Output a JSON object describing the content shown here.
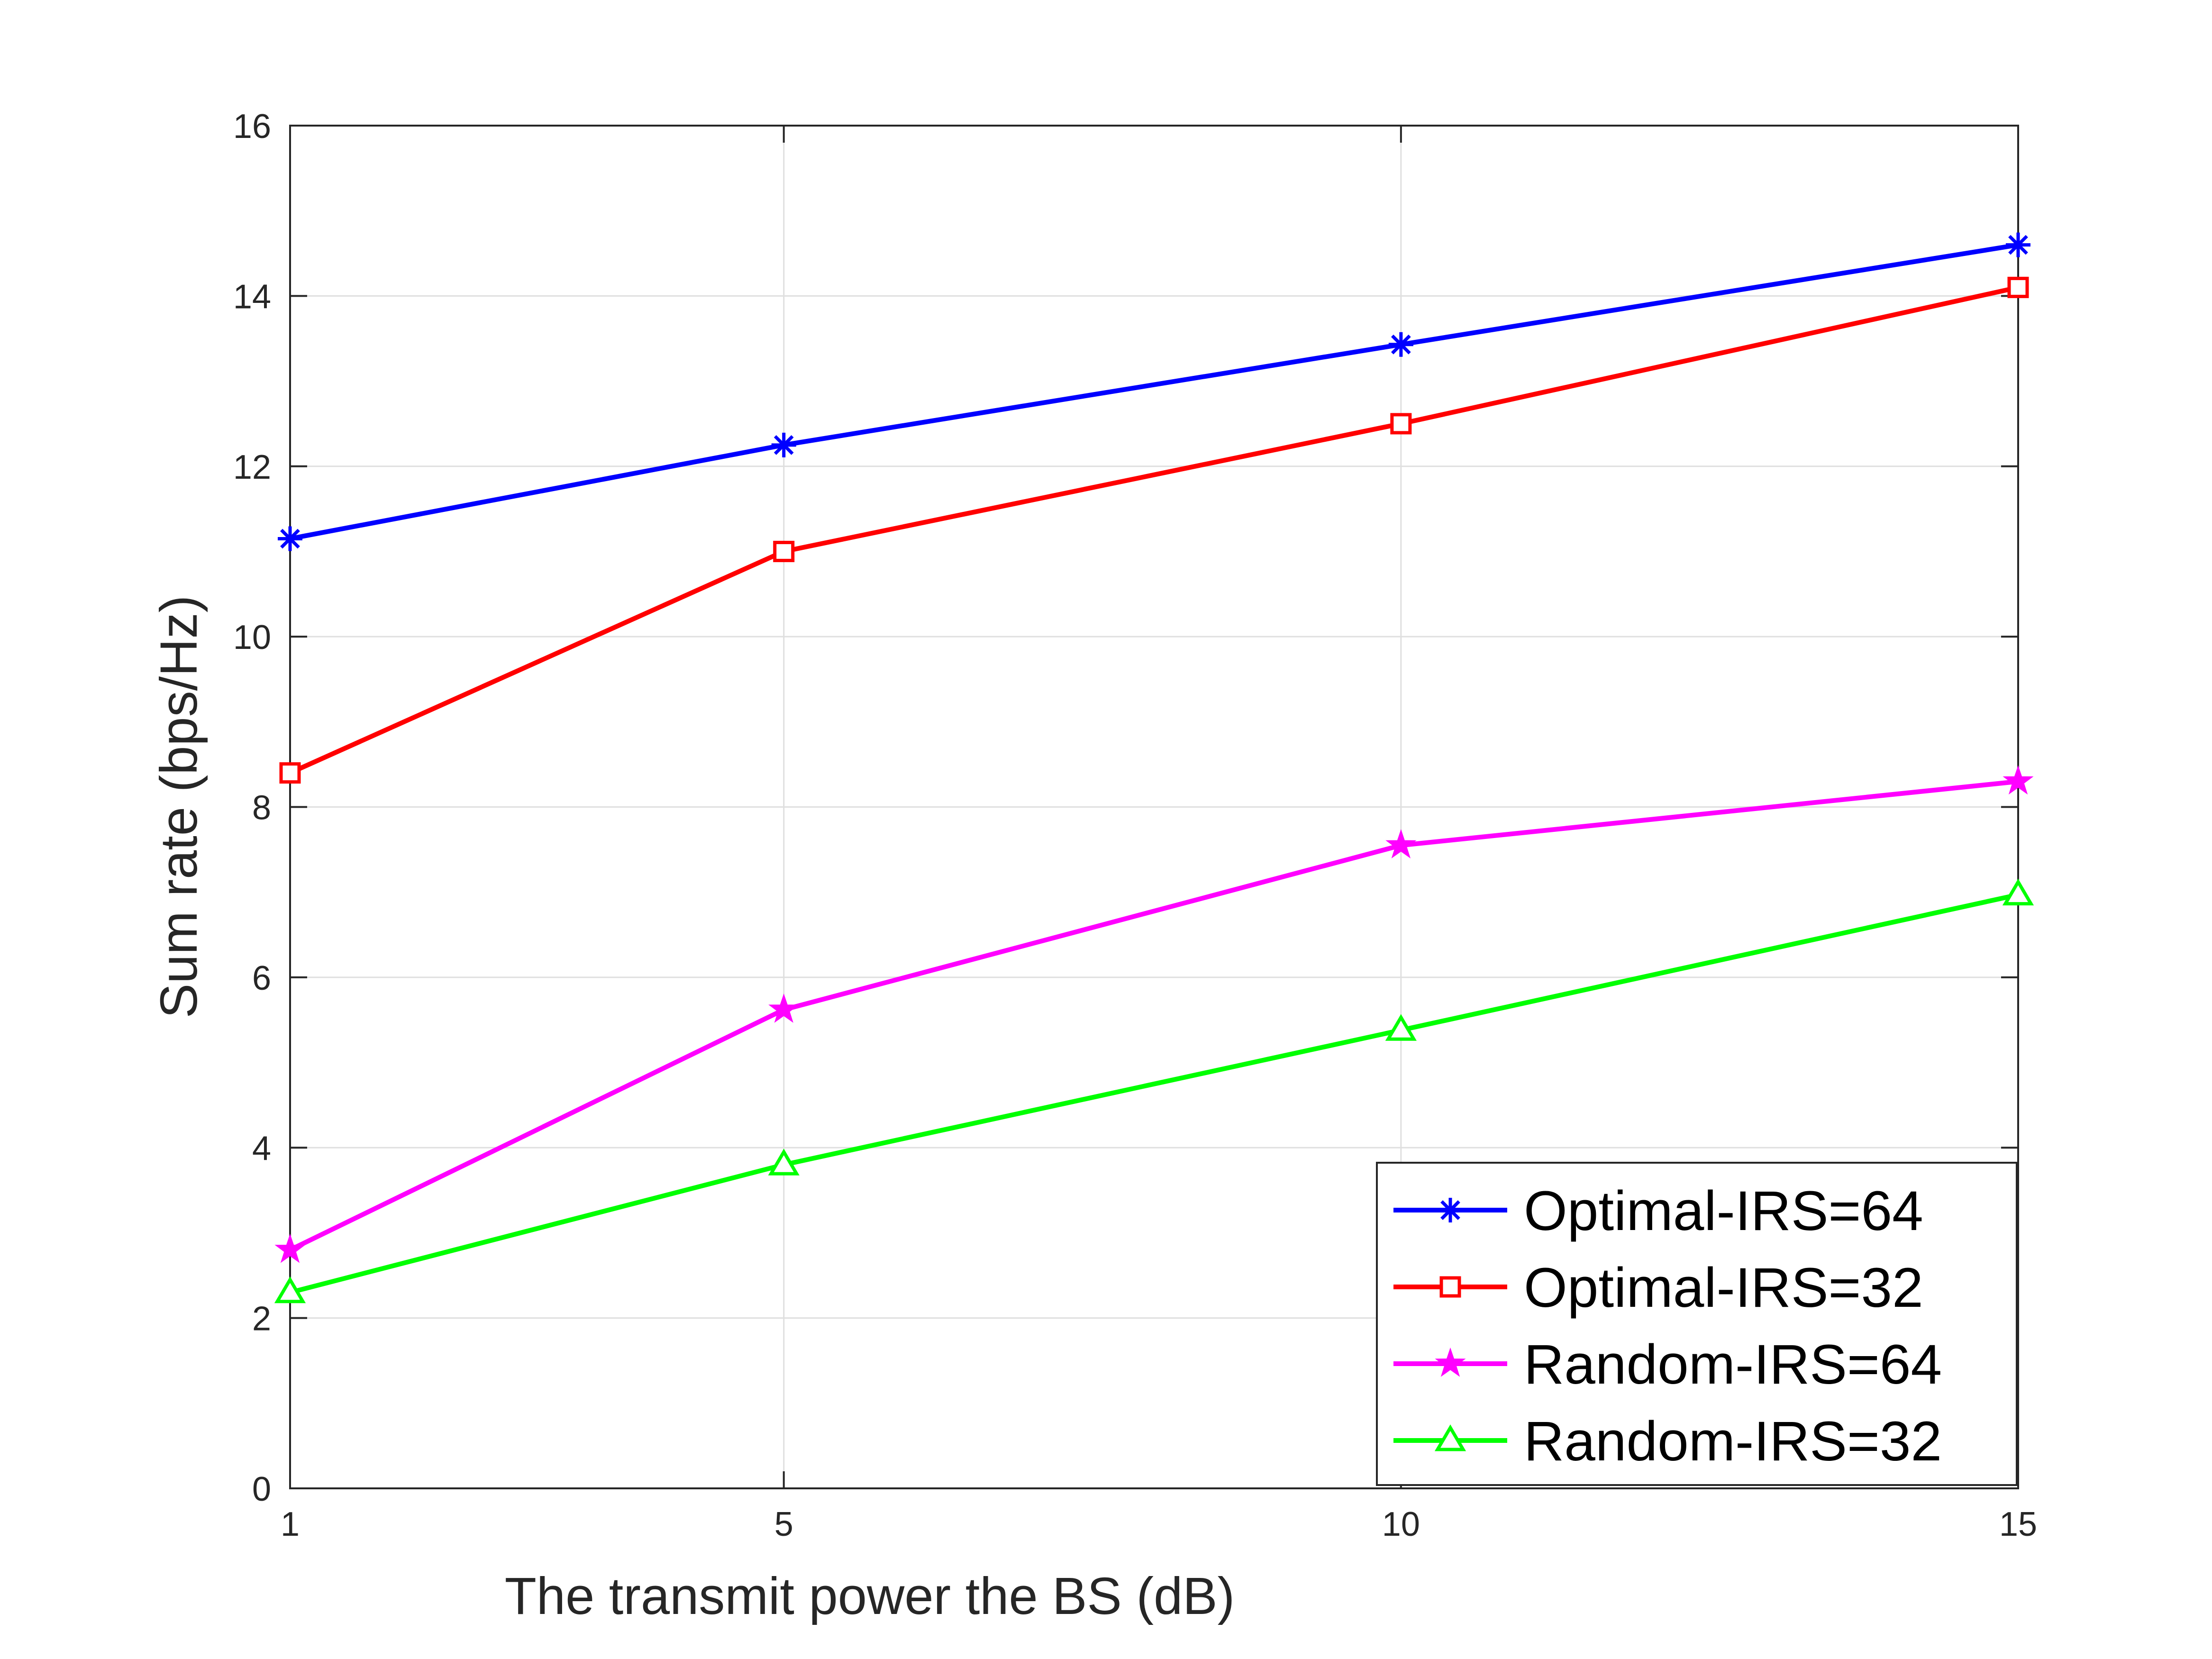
{
  "chart_data": {
    "type": "line",
    "title": "",
    "xlabel": "The transmit power the BS (dB)",
    "ylabel": "Sum rate (bps/Hz)",
    "xlim": [
      1,
      15
    ],
    "ylim": [
      0,
      16
    ],
    "xticks": [
      1,
      5,
      10,
      15
    ],
    "yticks": [
      0,
      2,
      4,
      6,
      8,
      10,
      12,
      14,
      16
    ],
    "grid": true,
    "legend_position": "bottom-right",
    "x": [
      1,
      5,
      10,
      15
    ],
    "series": [
      {
        "name": "Optimal-IRS=64",
        "values": [
          11.15,
          12.25,
          13.43,
          14.6
        ],
        "color": "#0000ff",
        "marker": "asterisk"
      },
      {
        "name": "Optimal-IRS=32",
        "values": [
          8.4,
          11.0,
          12.5,
          14.1
        ],
        "color": "#ff0000",
        "marker": "square"
      },
      {
        "name": "Random-IRS=64",
        "values": [
          2.8,
          5.62,
          7.55,
          8.3
        ],
        "color": "#ff00ff",
        "marker": "pentagram"
      },
      {
        "name": "Random-IRS=32",
        "values": [
          2.3,
          3.8,
          5.38,
          6.97
        ],
        "color": "#00ff00",
        "marker": "triangle"
      }
    ]
  }
}
